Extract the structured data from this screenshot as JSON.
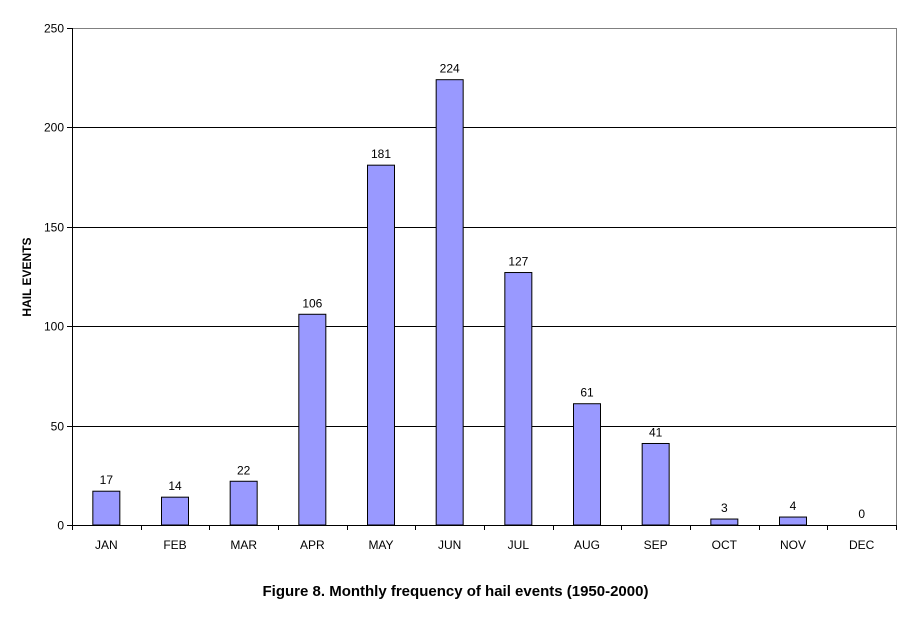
{
  "chart_data": {
    "type": "bar",
    "title": "",
    "xlabel": "",
    "ylabel": "HAIL EVENTS",
    "categories": [
      "JAN",
      "FEB",
      "MAR",
      "APR",
      "MAY",
      "JUN",
      "JUL",
      "AUG",
      "SEP",
      "OCT",
      "NOV",
      "DEC"
    ],
    "values": [
      17,
      14,
      22,
      106,
      181,
      224,
      127,
      61,
      41,
      3,
      4,
      0
    ],
    "ylim": [
      0,
      250
    ],
    "yticks": [
      "0",
      "50",
      "100",
      "150",
      "200",
      "250"
    ],
    "data_labels": [
      "17",
      "14",
      "22",
      "106",
      "181",
      "224",
      "127",
      "61",
      "41",
      "3",
      "4",
      "0"
    ],
    "grid": true,
    "legend": "none",
    "bar_color": "#9999ff"
  },
  "caption": "Figure 8. Monthly frequency of hail events (1950-2000)"
}
